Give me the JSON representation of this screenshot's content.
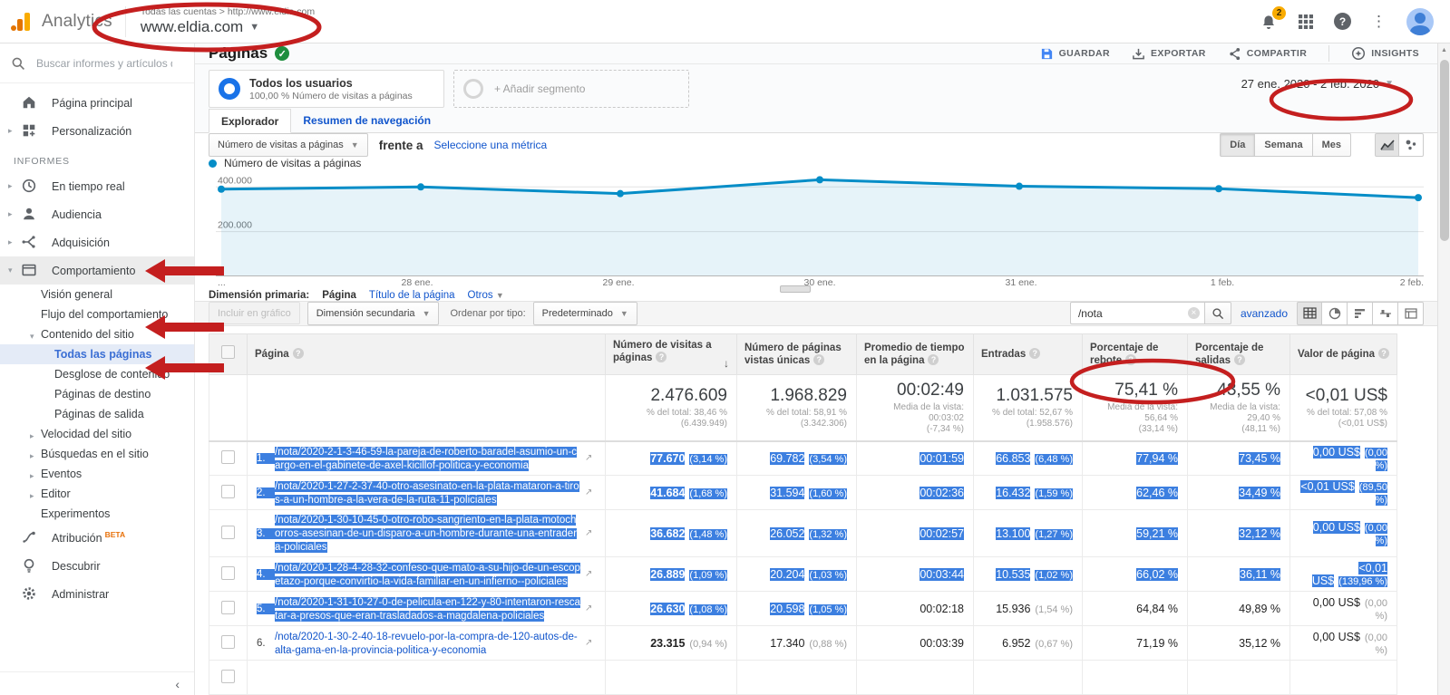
{
  "header": {
    "product": "Analytics",
    "breadcrumb": "Todas las cuentas > http://www.eldia.com",
    "account_name": "www.eldia.com",
    "notification_count": "2"
  },
  "sidebar": {
    "search_placeholder": "Buscar informes y artículos de",
    "items": [
      {
        "label": "Página principal",
        "icon": "home-icon",
        "level": 0
      },
      {
        "label": "Personalización",
        "icon": "personalization-icon",
        "level": 0,
        "caret": "right"
      },
      {
        "label": "INFORMES",
        "type": "section"
      },
      {
        "label": "En tiempo real",
        "icon": "realtime-icon",
        "level": 0,
        "caret": "right"
      },
      {
        "label": "Audiencia",
        "icon": "audience-icon",
        "level": 0,
        "caret": "right"
      },
      {
        "label": "Adquisición",
        "icon": "acquisition-icon",
        "level": 0,
        "caret": "right"
      },
      {
        "label": "Comportamiento",
        "icon": "behavior-icon",
        "level": 0,
        "caret": "down",
        "active": true
      },
      {
        "label": "Visión general",
        "level": 1
      },
      {
        "label": "Flujo del comportamiento",
        "level": 1
      },
      {
        "label": "Contenido del sitio",
        "level": 1,
        "caret": "down"
      },
      {
        "label": "Todas las páginas",
        "level": 2,
        "selected": true
      },
      {
        "label": "Desglose de contenido",
        "level": 2
      },
      {
        "label": "Páginas de destino",
        "level": 2
      },
      {
        "label": "Páginas de salida",
        "level": 2
      },
      {
        "label": "Velocidad del sitio",
        "level": 1,
        "caret": "right"
      },
      {
        "label": "Búsquedas en el sitio",
        "level": 1,
        "caret": "right"
      },
      {
        "label": "Eventos",
        "level": 1,
        "caret": "right"
      },
      {
        "label": "Editor",
        "level": 1,
        "caret": "right"
      },
      {
        "label": "Experimentos",
        "level": 1
      },
      {
        "label": "Atribución",
        "icon": "attribution-icon",
        "level": 0,
        "badge": "BETA"
      },
      {
        "label": "Descubrir",
        "icon": "discover-icon",
        "level": 0
      },
      {
        "label": "Administrar",
        "icon": "admin-icon",
        "level": 0
      }
    ],
    "collapse_glyph": "‹"
  },
  "report": {
    "title": "Páginas",
    "actions": [
      {
        "label": "GUARDAR",
        "icon": "save-icon"
      },
      {
        "label": "EXPORTAR",
        "icon": "export-icon"
      },
      {
        "label": "COMPARTIR",
        "icon": "share-icon"
      },
      {
        "label": "INSIGHTS",
        "icon": "insights-icon"
      }
    ],
    "date_range": "27 ene. 2020 - 2 feb. 2020",
    "segment": {
      "name": "Todos los usuarios",
      "desc": "100,00 % Número de visitas a páginas"
    },
    "add_segment": "+ Añadir segmento",
    "tabs": [
      "Explorador",
      "Resumen de navegación"
    ],
    "metric_selector": "Número de visitas a páginas",
    "vs_label": "frente a",
    "select_metric": "Seleccione una métrica",
    "granularity": [
      "Día",
      "Semana",
      "Mes"
    ]
  },
  "chart_data": {
    "type": "area",
    "title": "Número de visitas a páginas",
    "legend": "Número de visitas a páginas",
    "legend_position": "top-left",
    "x": [
      "27 ene.",
      "28 ene.",
      "29 ene.",
      "30 ene.",
      "31 ene.",
      "1 feb.",
      "2 feb."
    ],
    "x_axis_labels": [
      "...",
      "28 ene.",
      "29 ene.",
      "30 ene.",
      "31 ene.",
      "1 feb.",
      "2 feb."
    ],
    "values": [
      390000,
      400000,
      370000,
      432000,
      403000,
      392000,
      352000
    ],
    "ylim": [
      0,
      470000
    ],
    "yticks": [
      200000,
      400000
    ],
    "ytick_labels": [
      "200.000",
      "400.000"
    ],
    "grid": true,
    "line_color": "#058dc7",
    "fill_color": "rgba(5,141,199,0.10)"
  },
  "dimension_bar": {
    "label": "Dimensión primaria:",
    "options": [
      "Página",
      "Título de la página",
      "Otros"
    ]
  },
  "controls": {
    "include_in_chart": "Incluir en gráfico",
    "secondary_dimension": "Dimensión secundaria",
    "sort_type_label": "Ordenar por tipo:",
    "sort_type_value": "Predeterminado",
    "search_value": "/nota",
    "advanced": "avanzado"
  },
  "table": {
    "columns": [
      "Página",
      "Número de visitas a páginas",
      "Número de páginas vistas únicas",
      "Promedio de tiempo en la página",
      "Entradas",
      "Porcentaje de rebote",
      "Porcentaje de salidas",
      "Valor de página"
    ],
    "totals": {
      "visits": {
        "value": "2.476.609",
        "sub": "% del total: 38,46 %\n(6.439.949)"
      },
      "unique": {
        "value": "1.968.829",
        "sub": "% del total: 58,91 %\n(3.342.306)"
      },
      "time": {
        "value": "00:02:49",
        "sub": "Media de la vista: 00:03:02\n(-7,34 %)"
      },
      "entries": {
        "value": "1.031.575",
        "sub": "% del total: 52,67 %\n(1.958.576)"
      },
      "bounce": {
        "value": "75,41 %",
        "sub": "Media de la vista: 56,64 %\n(33,14 %)"
      },
      "exit": {
        "value": "43,55 %",
        "sub": "Media de la vista: 29,40 %\n(48,11 %)"
      },
      "value": {
        "value": "<0,01 US$",
        "sub": "% del total: 57,08 %\n(<0,01 US$)"
      }
    },
    "rows": [
      {
        "index": "1.",
        "page": "/nota/2020-2-1-3-46-59-la-pareja-de-roberto-baradel-asumio-un-cargo-en-el-gabinete-de-axel-kicillof-politica-y-economia",
        "visits": "77.670",
        "visits_pct": "(3,14 %)",
        "unique": "69.782",
        "unique_pct": "(3,54 %)",
        "time": "00:01:59",
        "entries": "66.853",
        "entries_pct": "(6,48 %)",
        "bounce": "77,94 %",
        "exit": "73,45 %",
        "value": "0,00 US$",
        "value_pct": "(0,00 %)",
        "sel": [
          "index",
          "page",
          "visits",
          "unique",
          "time",
          "entries",
          "bounce",
          "exit",
          "value"
        ]
      },
      {
        "index": "2.",
        "page": "/nota/2020-1-27-2-37-40-otro-asesinato-en-la-plata-mataron-a-tiros-a-un-hombre-a-la-vera-de-la-ruta-11-policiales",
        "visits": "41.684",
        "visits_pct": "(1,68 %)",
        "unique": "31.594",
        "unique_pct": "(1,60 %)",
        "time": "00:02:36",
        "entries": "16.432",
        "entries_pct": "(1,59 %)",
        "bounce": "62,46 %",
        "exit": "34,49 %",
        "value": "<0,01 US$",
        "value_pct": "(89,50 %)",
        "sel": [
          "index",
          "page",
          "visits",
          "unique",
          "time",
          "entries",
          "bounce",
          "exit",
          "value"
        ]
      },
      {
        "index": "3.",
        "page": "/nota/2020-1-30-10-45-0-otro-robo-sangriento-en-la-plata-motochorros-asesinan-de-un-disparo-a-un-hombre-durante-una-entradera-policiales",
        "visits": "36.682",
        "visits_pct": "(1,48 %)",
        "unique": "26.052",
        "unique_pct": "(1,32 %)",
        "time": "00:02:57",
        "entries": "13.100",
        "entries_pct": "(1,27 %)",
        "bounce": "59,21 %",
        "exit": "32,12 %",
        "value": "0,00 US$",
        "value_pct": "(0,00 %)",
        "sel": [
          "index",
          "page",
          "visits",
          "unique",
          "time",
          "entries",
          "bounce",
          "exit",
          "value"
        ]
      },
      {
        "index": "4.",
        "page": "/nota/2020-1-28-4-28-32-confeso-que-mato-a-su-hijo-de-un-escopetazo-porque-convirtio-la-vida-familiar-en-un-infierno--policiales",
        "visits": "26.889",
        "visits_pct": "(1,09 %)",
        "unique": "20.204",
        "unique_pct": "(1,03 %)",
        "time": "00:03:44",
        "entries": "10.535",
        "entries_pct": "(1,02 %)",
        "bounce": "66,02 %",
        "exit": "36,11 %",
        "value": "<0,01 US$",
        "value_pct": "(139,96 %)",
        "sel": [
          "index",
          "page",
          "visits",
          "unique",
          "time",
          "entries",
          "bounce",
          "exit",
          "value"
        ]
      },
      {
        "index": "5.",
        "page": "/nota/2020-1-31-10-27-0-de-pelicula-en-122-y-80-intentaron-rescatar-a-presos-que-eran-trasladados-a-magdalena-policiales",
        "visits": "26.630",
        "visits_pct": "(1,08 %)",
        "unique": "20.598",
        "unique_pct": "(1,05 %)",
        "time": "00:02:18",
        "entries": "15.936",
        "entries_pct": "(1,54 %)",
        "bounce": "64,84 %",
        "exit": "49,89 %",
        "value": "0,00 US$",
        "value_pct": "(0,00 %)",
        "sel": [
          "index",
          "page",
          "visits",
          "unique"
        ]
      },
      {
        "index": "6.",
        "page": "/nota/2020-1-30-2-40-18-revuelo-por-la-compra-de-120-autos-de-alta-gama-en-la-provincia-politica-y-economia",
        "visits": "23.315",
        "visits_pct": "(0,94 %)",
        "unique": "17.340",
        "unique_pct": "(0,88 %)",
        "time": "00:03:39",
        "entries": "6.952",
        "entries_pct": "(0,67 %)",
        "bounce": "71,19 %",
        "exit": "35,12 %",
        "value": "0,00 US$",
        "value_pct": "(0,00 %)",
        "sel": []
      }
    ]
  },
  "annotations": {
    "color": "#c41f1f",
    "ellipse_targets": [
      "account-selector",
      "date-range-selector",
      "table-search-input"
    ],
    "arrow_targets": [
      "sidebar-item-comportamiento",
      "sidebar-item-contenido-del-sitio",
      "sidebar-item-todas-las-paginas"
    ]
  }
}
